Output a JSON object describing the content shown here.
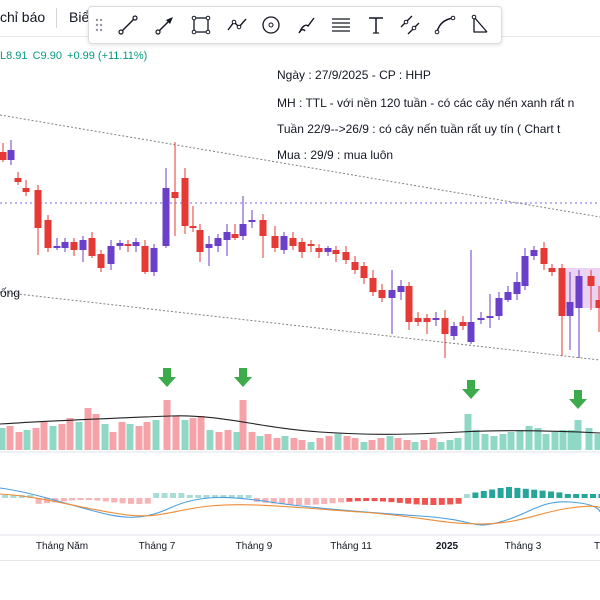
{
  "tabs": [
    {
      "label": "chỉ báo"
    },
    {
      "label": "Biể"
    }
  ],
  "toolbar": {
    "tools": [
      {
        "icon": "trend-line-icon"
      },
      {
        "icon": "arrow-line-icon"
      },
      {
        "icon": "rectangle-icon"
      },
      {
        "icon": "path-icon"
      },
      {
        "icon": "circle-icon"
      },
      {
        "icon": "brush-icon"
      },
      {
        "icon": "fib-levels-icon"
      },
      {
        "icon": "text-icon"
      },
      {
        "icon": "parallel-channel-icon"
      },
      {
        "icon": "curve-icon"
      },
      {
        "icon": "angle-icon"
      }
    ]
  },
  "ohlc": {
    "low": "L8.91",
    "close": "C9.90",
    "change": "+0.99 (+11.11%)",
    "colors": {
      "label": "#787b86",
      "value": "#089981"
    }
  },
  "notes": [
    "Ngày : 27/9/2025 - CP : HHP",
    "MH : TTL - với nền 120 tuần - có các cây nến xanh rất n",
    "Tuần 22/9-->26/9 : có cây nến tuần rất uy tín ( Chart t",
    "Mua : 29/9 : mua luôn"
  ],
  "pattern_label": "ống",
  "time_axis": [
    {
      "label": "Tháng Năm",
      "bold": false
    },
    {
      "label": "Tháng 7",
      "bold": false
    },
    {
      "label": "Tháng 9",
      "bold": false
    },
    {
      "label": "Tháng 11",
      "bold": false
    },
    {
      "label": "2025",
      "bold": true
    },
    {
      "label": "Tháng 3",
      "bold": false
    },
    {
      "label": "T",
      "bold": false
    }
  ],
  "colors": {
    "up": "#6a3fc9",
    "down": "#e53935",
    "vol_up": "#8fd8c6",
    "vol_down": "#f5a3a8",
    "signal_arrow": "#3daa4b",
    "channel": "#808080",
    "hline": "#7b68ee",
    "vol_ma": "#222222",
    "macd": "#4a9fe0",
    "signal": "#f08c35",
    "hist_up": "#26a69a",
    "hist_down": "#ef5350",
    "highlight": "#e7c8ee"
  }
}
